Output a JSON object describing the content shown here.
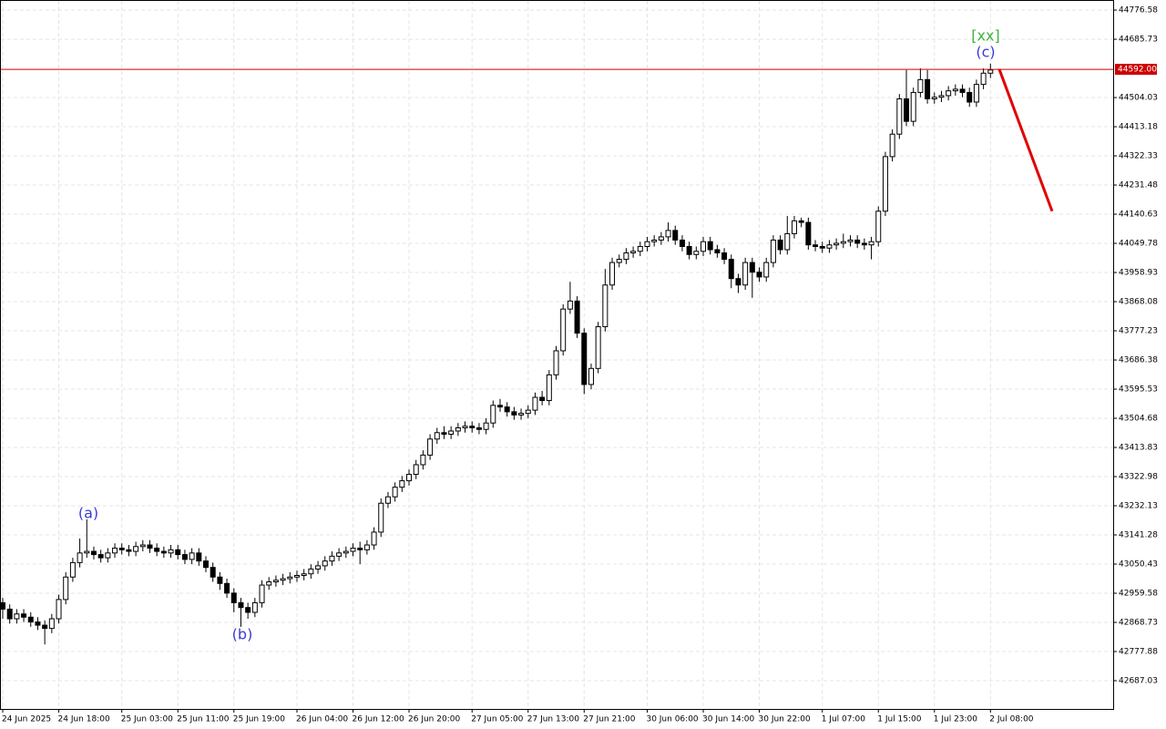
{
  "chart_data": {
    "type": "candlestick",
    "categories": [
      "24 Jun 2025",
      null,
      null,
      null,
      null,
      null,
      null,
      null,
      "24 Jun 18:00",
      null,
      null,
      null,
      null,
      null,
      null,
      null,
      null,
      "25 Jun 03:00",
      null,
      null,
      null,
      null,
      null,
      null,
      null,
      "25 Jun 11:00",
      null,
      null,
      null,
      null,
      null,
      null,
      null,
      "25 Jun 19:00",
      null,
      null,
      null,
      null,
      null,
      null,
      null,
      null,
      "26 Jun 04:00",
      null,
      null,
      null,
      null,
      null,
      null,
      null,
      "26 Jun 12:00",
      null,
      null,
      null,
      null,
      null,
      null,
      null,
      "26 Jun 20:00",
      null,
      null,
      null,
      null,
      null,
      null,
      null,
      null,
      "27 Jun 05:00",
      null,
      null,
      null,
      null,
      null,
      null,
      null,
      "27 Jun 13:00",
      null,
      null,
      null,
      null,
      null,
      null,
      null,
      "27 Jun 21:00",
      null,
      null,
      null,
      null,
      null,
      null,
      null,
      null,
      "30 Jun 06:00",
      null,
      null,
      null,
      null,
      null,
      null,
      null,
      "30 Jun 14:00",
      null,
      null,
      null,
      null,
      null,
      null,
      null,
      "30 Jun 22:00",
      null,
      null,
      null,
      null,
      null,
      null,
      null,
      null,
      "1 Jul 07:00",
      null,
      null,
      null,
      null,
      null,
      null,
      null,
      "1 Jul 15:00",
      null,
      null,
      null,
      null,
      null,
      null,
      null,
      "1 Jul 23:00",
      null,
      null,
      null,
      null,
      null,
      null,
      null,
      "2 Jul 08:00"
    ],
    "open": [
      42930,
      42910,
      42880,
      42895,
      42885,
      42870,
      42860,
      42850,
      42880,
      42940,
      43010,
      43055,
      43085,
      43090,
      43080,
      43070,
      43085,
      43100,
      43095,
      43090,
      43105,
      43110,
      43100,
      43090,
      43085,
      43095,
      43080,
      43065,
      43085,
      43060,
      43040,
      43010,
      42990,
      42960,
      42930,
      42915,
      42900,
      42930,
      42985,
      42995,
      43000,
      43005,
      43010,
      43015,
      43020,
      43035,
      43045,
      43060,
      43075,
      43085,
      43090,
      43100,
      43095,
      43110,
      43150,
      43240,
      43260,
      43290,
      43310,
      43330,
      43360,
      43390,
      43440,
      43460,
      43455,
      43465,
      43475,
      43480,
      43475,
      43470,
      43490,
      43545,
      43540,
      43525,
      43515,
      43520,
      43530,
      43570,
      43560,
      43640,
      43715,
      43845,
      43870,
      43770,
      43610,
      43660,
      43790,
      43920,
      43990,
      44000,
      44020,
      44025,
      44040,
      44055,
      44060,
      44070,
      44090,
      44060,
      44040,
      44015,
      44025,
      44055,
      44030,
      44020,
      44000,
      43940,
      43920,
      43990,
      43960,
      43945,
      43990,
      44060,
      44030,
      44080,
      44120,
      44115,
      44045,
      44040,
      44035,
      44045,
      44050,
      44055,
      44060,
      44050,
      44045,
      44055,
      44150,
      44320,
      44390,
      44500,
      44430,
      44520,
      44560,
      44500,
      44505,
      44510,
      44525,
      44530,
      44520,
      44490,
      44545,
      44580
    ],
    "high": [
      42945,
      42925,
      42910,
      42910,
      42900,
      42885,
      42875,
      42895,
      42955,
      43025,
      43070,
      43130,
      43190,
      43105,
      43095,
      43100,
      43115,
      43115,
      43110,
      43120,
      43125,
      43125,
      43115,
      43105,
      43110,
      43110,
      43095,
      43100,
      43100,
      43075,
      43055,
      43025,
      43005,
      42975,
      42945,
      42930,
      42945,
      43000,
      43010,
      43015,
      43020,
      43025,
      43030,
      43035,
      43050,
      43060,
      43075,
      43090,
      43100,
      43105,
      43115,
      43120,
      43125,
      43165,
      43255,
      43275,
      43305,
      43325,
      43345,
      43375,
      43405,
      43455,
      43475,
      43480,
      43480,
      43490,
      43495,
      43495,
      43490,
      43505,
      43560,
      43565,
      43555,
      43540,
      43535,
      43545,
      43585,
      43590,
      43655,
      43730,
      43860,
      43930,
      43885,
      43785,
      43675,
      43805,
      43970,
      44005,
      44015,
      44035,
      44040,
      44055,
      44070,
      44075,
      44085,
      44115,
      44105,
      44075,
      44055,
      44040,
      44070,
      44070,
      44045,
      44035,
      44015,
      43955,
      44005,
      44005,
      43975,
      44005,
      44075,
      44075,
      44135,
      44135,
      44130,
      44130,
      44060,
      44055,
      44060,
      44065,
      44080,
      44075,
      44075,
      44065,
      44070,
      44165,
      44335,
      44405,
      44515,
      44590,
      44535,
      44595,
      44590,
      44520,
      44525,
      44540,
      44545,
      44545,
      44535,
      44560,
      44595,
      44610
    ],
    "low": [
      42880,
      42865,
      42865,
      42870,
      42855,
      42845,
      42800,
      42835,
      42865,
      42925,
      42995,
      43040,
      43070,
      43065,
      43055,
      43055,
      43070,
      43080,
      43075,
      43075,
      43090,
      43085,
      43075,
      43070,
      43070,
      43065,
      43050,
      43050,
      43045,
      43025,
      42995,
      42970,
      42945,
      42900,
      42855,
      42880,
      42885,
      42915,
      42970,
      42980,
      42985,
      42990,
      42995,
      43000,
      43005,
      43020,
      43030,
      43045,
      43060,
      43070,
      43075,
      43050,
      43080,
      43095,
      43135,
      43225,
      43245,
      43275,
      43295,
      43315,
      43345,
      43375,
      43425,
      43440,
      43440,
      43450,
      43460,
      43460,
      43455,
      43455,
      43475,
      43525,
      43510,
      43500,
      43500,
      43505,
      43515,
      43545,
      43545,
      43625,
      43700,
      43830,
      43755,
      43580,
      43595,
      43645,
      43775,
      43905,
      43975,
      43985,
      44005,
      44010,
      44025,
      44040,
      44045,
      44055,
      44045,
      44025,
      44000,
      44000,
      44010,
      44015,
      44005,
      43985,
      43910,
      43895,
      43905,
      43880,
      43930,
      43930,
      43975,
      44015,
      44015,
      44065,
      44100,
      44030,
      44025,
      44020,
      44020,
      44030,
      44035,
      44040,
      44035,
      44030,
      44000,
      44040,
      44135,
      44305,
      44375,
      44415,
      44415,
      44505,
      44485,
      44485,
      44490,
      44495,
      44510,
      44505,
      44475,
      44475,
      44530,
      44565
    ],
    "close": [
      42910,
      42880,
      42895,
      42885,
      42870,
      42860,
      42850,
      42880,
      42940,
      43010,
      43055,
      43085,
      43090,
      43080,
      43070,
      43085,
      43100,
      43095,
      43090,
      43105,
      43110,
      43100,
      43090,
      43085,
      43095,
      43080,
      43065,
      43085,
      43060,
      43040,
      43010,
      42990,
      42960,
      42930,
      42915,
      42900,
      42930,
      42985,
      42995,
      43000,
      43005,
      43010,
      43015,
      43020,
      43035,
      43045,
      43060,
      43075,
      43085,
      43090,
      43100,
      43095,
      43110,
      43150,
      43240,
      43260,
      43290,
      43310,
      43330,
      43360,
      43390,
      43440,
      43460,
      43455,
      43465,
      43475,
      43480,
      43475,
      43470,
      43490,
      43545,
      43540,
      43525,
      43515,
      43520,
      43530,
      43570,
      43560,
      43640,
      43715,
      43845,
      43870,
      43770,
      43610,
      43660,
      43790,
      43920,
      43990,
      44000,
      44020,
      44025,
      44040,
      44055,
      44060,
      44070,
      44090,
      44060,
      44040,
      44015,
      44025,
      44055,
      44030,
      44020,
      44000,
      43940,
      43920,
      43990,
      43960,
      43945,
      43990,
      44060,
      44030,
      44080,
      44120,
      44115,
      44045,
      44040,
      44035,
      44045,
      44050,
      44055,
      44060,
      44050,
      44045,
      44055,
      44150,
      44320,
      44390,
      44500,
      44430,
      44520,
      44560,
      44500,
      44505,
      44510,
      44525,
      44530,
      44520,
      44490,
      44545,
      44580,
      44590
    ],
    "up_color": "#ffffff",
    "down_color": "#000000",
    "wick_color": "#000000",
    "ylim": [
      42599,
      44808
    ],
    "yticks": [
      44776.58,
      44685.73,
      44504.03,
      44413.18,
      44322.33,
      44231.48,
      44140.63,
      44049.78,
      43958.93,
      43868.08,
      43777.23,
      43686.38,
      43595.53,
      43504.68,
      43413.83,
      43322.98,
      43232.13,
      43141.28,
      43050.43,
      42959.58,
      42868.73,
      42777.88,
      42687.03
    ],
    "grid": true,
    "price_line": {
      "value": 44592,
      "label": "44592.00",
      "color": "#cc0000"
    },
    "forecast": {
      "values": [
        44592,
        44150
      ],
      "color": "#e00000"
    },
    "annotations": [
      {
        "text": "(a)",
        "color": "#3a3ad6"
      },
      {
        "text": "(b)",
        "color": "#3a3ad6"
      },
      {
        "text": "(c)",
        "color": "#3a3ad6"
      },
      {
        "text": "[xx]",
        "color": "#3cb43c"
      }
    ]
  }
}
